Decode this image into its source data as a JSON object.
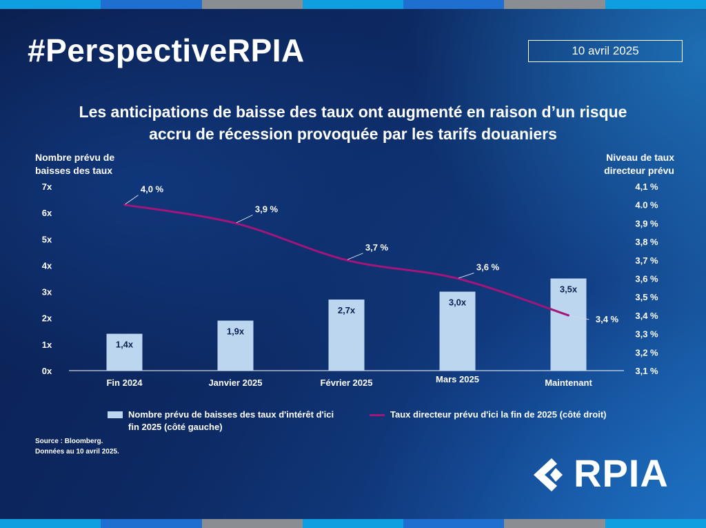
{
  "header": {
    "hashtag": "#PerspectiveRPIA",
    "date": "10 avril 2025"
  },
  "title_lines": [
    "Les anticipations de baisse des taux ont augmenté en raison d’un risque",
    "accru de récession provoquée par les tarifs douaniers"
  ],
  "left_axis_title": [
    "Nombre prévu de",
    "baisses des taux"
  ],
  "right_axis_title": [
    "Niveau de taux",
    "directeur prévu"
  ],
  "chart_data": {
    "type": "bar+line",
    "categories": [
      "Fin 2024",
      "Janvier 2025",
      "Février 2025",
      "Mars 2025",
      "Maintenant"
    ],
    "series": [
      {
        "name": "Nombre prévu de baisses des taux d'intérêt d'ici fin 2025 (côté gauche)",
        "type": "bar",
        "axis": "left",
        "values": [
          1.4,
          1.9,
          2.7,
          3.0,
          3.5
        ],
        "labels": [
          "1,4x",
          "1,9x",
          "2,7x",
          "3,0x",
          "3,5x"
        ],
        "color": "#bcd6ef"
      },
      {
        "name": "Taux directeur prévu d'ici la fin de 2025 (côté droit)",
        "type": "line",
        "axis": "right",
        "values": [
          4.0,
          3.9,
          3.7,
          3.6,
          3.4
        ],
        "labels": [
          "4,0 %",
          "3,9 %",
          "3,7 %",
          "3,6 %",
          "3,4 %"
        ],
        "color": "#a3157a"
      }
    ],
    "left_axis": {
      "ylim": [
        0,
        7
      ],
      "ticks": [
        "0x",
        "1x",
        "2x",
        "3x",
        "4x",
        "5x",
        "6x",
        "7x"
      ]
    },
    "right_axis": {
      "ylim": [
        3.1,
        4.1
      ],
      "ticks": [
        "3,1 %",
        "3,2 %",
        "3,3 %",
        "3,4 %",
        "3,5 %",
        "3,6 %",
        "3,7 %",
        "3,8 %",
        "3,9 %",
        "4.0 %",
        "4,1 %"
      ]
    },
    "grid": false
  },
  "legend": {
    "bar_label": "Nombre prévu de baisses des taux d'intérêt d'ici fin 2025 (côté gauche)",
    "line_label": "Taux directeur prévu d'ici la fin de 2025 (côté droit)"
  },
  "source_lines": [
    "Source : Bloomberg.",
    "Données au 10 avril 2025."
  ],
  "logo_text": "RPIA",
  "colors": {
    "bar": "#bcd6ef",
    "line": "#a3157a",
    "background_dark": "#0b1e4e",
    "background_light": "#1c67b0"
  }
}
